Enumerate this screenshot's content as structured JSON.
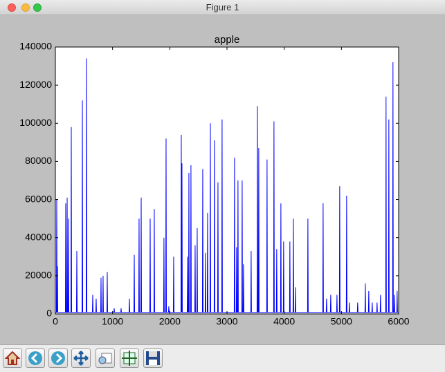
{
  "window": {
    "title": "Figure 1"
  },
  "chart_data": {
    "type": "line",
    "title": "apple",
    "color": "#0000ff",
    "xlim": [
      0,
      6000
    ],
    "xticks": [
      0,
      1000,
      2000,
      3000,
      4000,
      5000,
      6000
    ],
    "ylim": [
      0,
      140000
    ],
    "yticks": [
      0,
      20000,
      40000,
      60000,
      80000,
      100000,
      120000,
      140000
    ],
    "x": [
      0,
      18,
      24,
      30,
      30,
      36,
      42,
      175,
      181,
      187,
      200,
      206,
      212,
      224,
      230,
      236,
      272,
      278,
      284,
      369,
      375,
      381,
      466,
      472,
      478,
      538,
      544,
      550,
      647,
      653,
      659,
      707,
      713,
      719,
      792,
      798,
      804,
      828,
      834,
      840,
      901,
      907,
      913,
      1022,
      1028,
      1034,
      1143,
      1149,
      1155,
      1288,
      1294,
      1300,
      1373,
      1379,
      1385,
      1457,
      1463,
      1469,
      1494,
      1500,
      1506,
      1651,
      1657,
      1663,
      1723,
      1729,
      1735,
      1892,
      1898,
      1904,
      1929,
      1935,
      1941,
      1977,
      1983,
      1989,
      2062,
      2068,
      2074,
      2195,
      2201,
      2207,
      2207,
      2213,
      2219,
      2304,
      2310,
      2316,
      2328,
      2334,
      2340,
      2364,
      2370,
      2376,
      2437,
      2443,
      2449,
      2473,
      2479,
      2485,
      2570,
      2576,
      2582,
      2618,
      2624,
      2630,
      2655,
      2661,
      2667,
      2703,
      2709,
      2715,
      2775,
      2781,
      2787,
      2836,
      2842,
      2848,
      2908,
      2914,
      2920,
      3126,
      3132,
      3138,
      3162,
      3168,
      3174,
      3186,
      3192,
      3198,
      3259,
      3265,
      3271,
      3283,
      3289,
      3295,
      3416,
      3422,
      3428,
      3525,
      3531,
      3537,
      3549,
      3555,
      3561,
      3694,
      3700,
      3706,
      3815,
      3821,
      3827,
      3863,
      3869,
      3875,
      3936,
      3942,
      3948,
      3984,
      3990,
      3996,
      4093,
      4099,
      4105,
      4154,
      4160,
      4166,
      4190,
      4196,
      4202,
      4408,
      4414,
      4420,
      4674,
      4680,
      4686,
      4734,
      4740,
      4746,
      4807,
      4813,
      4819,
      4916,
      4922,
      4928,
      4964,
      4970,
      4976,
      5085,
      5091,
      5097,
      5133,
      5139,
      5145,
      5278,
      5284,
      5290,
      5411,
      5417,
      5423,
      5472,
      5478,
      5484,
      5532,
      5538,
      5544,
      5617,
      5623,
      5629,
      5677,
      5683,
      5689,
      5774,
      5780,
      5786,
      5823,
      5829,
      5835,
      5895,
      5901,
      5907,
      5919,
      5925,
      5931,
      5968,
      5974,
      5980,
      6000
    ],
    "values": [
      800,
      800,
      60000,
      800,
      800,
      25000,
      800,
      800,
      58000,
      800,
      800,
      61000,
      800,
      800,
      50000,
      800,
      800,
      98000,
      800,
      800,
      33000,
      800,
      800,
      112000,
      800,
      800,
      134000,
      800,
      800,
      10000,
      800,
      800,
      8000,
      800,
      800,
      19000,
      800,
      800,
      20000,
      800,
      800,
      22000,
      800,
      800,
      3000,
      800,
      800,
      3000,
      800,
      800,
      8000,
      800,
      800,
      31000,
      800,
      800,
      50000,
      800,
      800,
      61000,
      800,
      800,
      50000,
      800,
      800,
      55000,
      800,
      800,
      40000,
      800,
      800,
      92000,
      800,
      800,
      4000,
      800,
      800,
      30000,
      800,
      800,
      94000,
      800,
      800,
      79000,
      800,
      800,
      30000,
      800,
      800,
      74000,
      800,
      800,
      78000,
      800,
      800,
      36000,
      800,
      800,
      45000,
      800,
      800,
      76000,
      800,
      800,
      32000,
      800,
      800,
      53000,
      800,
      800,
      100000,
      800,
      800,
      91000,
      800,
      800,
      69000,
      800,
      800,
      102000,
      800,
      800,
      82000,
      800,
      800,
      35000,
      800,
      800,
      70000,
      800,
      800,
      70000,
      800,
      800,
      26000,
      800,
      800,
      33000,
      800,
      800,
      109000,
      800,
      800,
      87000,
      800,
      800,
      81000,
      800,
      800,
      101000,
      800,
      800,
      34000,
      800,
      800,
      58000,
      800,
      800,
      38000,
      800,
      800,
      38000,
      800,
      800,
      50000,
      800,
      800,
      14000,
      800,
      800,
      50000,
      800,
      800,
      58000,
      800,
      800,
      8000,
      800,
      800,
      10000,
      800,
      800,
      10000,
      800,
      800,
      67000,
      800,
      800,
      62000,
      800,
      800,
      6000,
      800,
      800,
      6000,
      800,
      800,
      16000,
      800,
      800,
      12000,
      800,
      800,
      6000,
      800,
      800,
      6000,
      800,
      800,
      10000,
      800,
      800,
      114000,
      800,
      800,
      102000,
      800,
      800,
      132000,
      800,
      800,
      10000,
      800,
      800,
      12000,
      800,
      800
    ]
  }
}
